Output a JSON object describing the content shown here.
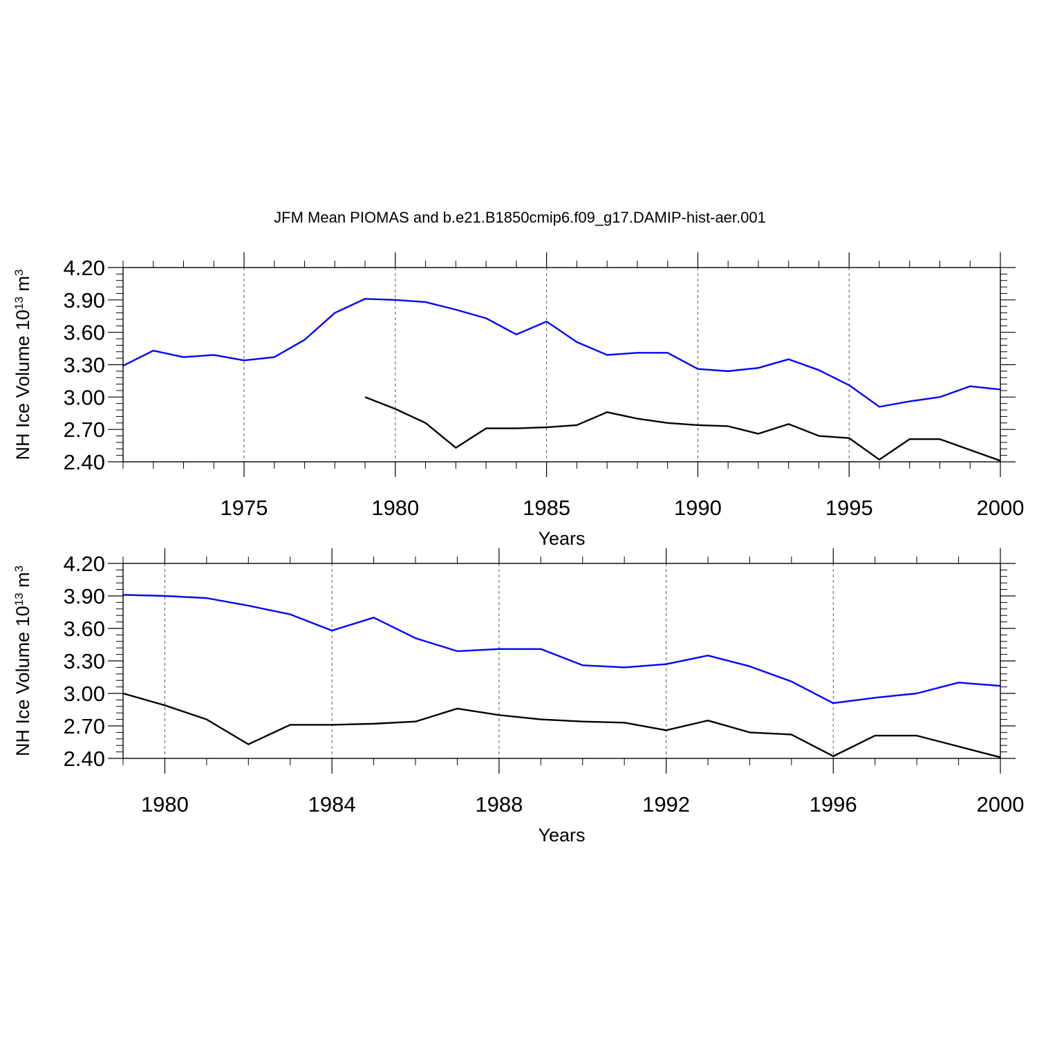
{
  "title": "JFM Mean PIOMAS and b.e21.B1850cmip6.f09_g17.DAMIP-hist-aer.001",
  "colors": {
    "piomas": "#0000ff",
    "model": "#000000",
    "axis": "#000000",
    "grid": "#555555"
  },
  "chart_data": [
    {
      "type": "line",
      "title": "",
      "xlabel": "Years",
      "ylabel": {
        "main": "NH Ice Volume 10",
        "sup1": "13",
        "unit": " m",
        "sup2": "3"
      },
      "xlim": [
        1971,
        2000
      ],
      "ylim": [
        2.4,
        4.2
      ],
      "xticks": [
        1975,
        1980,
        1985,
        1990,
        1995,
        2000
      ],
      "xtick_labels": [
        "1975",
        "1980",
        "1985",
        "1990",
        "1995",
        "2000"
      ],
      "xminor_step": 1,
      "yticks": [
        2.4,
        2.7,
        3.0,
        3.3,
        3.6,
        3.9,
        4.2
      ],
      "ytick_labels": [
        "2.40",
        "2.70",
        "3.00",
        "3.30",
        "3.60",
        "3.90",
        "4.20"
      ],
      "yminor_step": 0.06,
      "grid": "x dashed at major ticks",
      "series": [
        {
          "name": "PIOMAS",
          "color": "blue",
          "x": [
            1971,
            1972,
            1973,
            1974,
            1975,
            1976,
            1977,
            1978,
            1979,
            1980,
            1981,
            1982,
            1983,
            1984,
            1985,
            1986,
            1987,
            1988,
            1989,
            1990,
            1991,
            1992,
            1993,
            1994,
            1995,
            1996,
            1997,
            1998,
            1999,
            2000
          ],
          "values": [
            3.29,
            3.43,
            3.37,
            3.39,
            3.34,
            3.37,
            3.53,
            3.78,
            3.91,
            3.9,
            3.88,
            3.81,
            3.73,
            3.58,
            3.7,
            3.51,
            3.39,
            3.41,
            3.41,
            3.26,
            3.24,
            3.27,
            3.35,
            3.25,
            3.11,
            2.91,
            2.96,
            3.0,
            3.1,
            3.07
          ]
        },
        {
          "name": "b.e21.B1850cmip6.f09_g17.DAMIP-hist-aer.001",
          "color": "black",
          "x": [
            1979,
            1980,
            1981,
            1982,
            1983,
            1984,
            1985,
            1986,
            1987,
            1988,
            1989,
            1990,
            1991,
            1992,
            1993,
            1994,
            1995,
            1996,
            1997,
            1998,
            1999,
            2000
          ],
          "values": [
            3.0,
            2.89,
            2.76,
            2.53,
            2.71,
            2.71,
            2.72,
            2.74,
            2.86,
            2.8,
            2.76,
            2.74,
            2.73,
            2.66,
            2.75,
            2.64,
            2.62,
            2.42,
            2.61,
            2.61,
            2.51,
            2.41
          ]
        }
      ]
    },
    {
      "type": "line",
      "title": "",
      "xlabel": "Years",
      "ylabel": {
        "main": "NH Ice Volume 10",
        "sup1": "13",
        "unit": " m",
        "sup2": "3"
      },
      "xlim": [
        1979,
        2000
      ],
      "ylim": [
        2.4,
        4.2
      ],
      "xticks": [
        1980,
        1984,
        1988,
        1992,
        1996,
        2000
      ],
      "xtick_labels": [
        "1980",
        "1984",
        "1988",
        "1992",
        "1996",
        "2000"
      ],
      "xminor_step": 1,
      "yticks": [
        2.4,
        2.7,
        3.0,
        3.3,
        3.6,
        3.9,
        4.2
      ],
      "ytick_labels": [
        "2.40",
        "2.70",
        "3.00",
        "3.30",
        "3.60",
        "3.90",
        "4.20"
      ],
      "yminor_step": 0.06,
      "grid": "x dashed at major ticks",
      "series": [
        {
          "name": "PIOMAS",
          "color": "blue",
          "x": [
            1979,
            1980,
            1981,
            1982,
            1983,
            1984,
            1985,
            1986,
            1987,
            1988,
            1989,
            1990,
            1991,
            1992,
            1993,
            1994,
            1995,
            1996,
            1997,
            1998,
            1999,
            2000
          ],
          "values": [
            3.91,
            3.9,
            3.88,
            3.81,
            3.73,
            3.58,
            3.7,
            3.51,
            3.39,
            3.41,
            3.41,
            3.26,
            3.24,
            3.27,
            3.35,
            3.25,
            3.11,
            2.91,
            2.96,
            3.0,
            3.1,
            3.07
          ]
        },
        {
          "name": "b.e21.B1850cmip6.f09_g17.DAMIP-hist-aer.001",
          "color": "black",
          "x": [
            1979,
            1980,
            1981,
            1982,
            1983,
            1984,
            1985,
            1986,
            1987,
            1988,
            1989,
            1990,
            1991,
            1992,
            1993,
            1994,
            1995,
            1996,
            1997,
            1998,
            1999,
            2000
          ],
          "values": [
            3.0,
            2.89,
            2.76,
            2.53,
            2.71,
            2.71,
            2.72,
            2.74,
            2.86,
            2.8,
            2.76,
            2.74,
            2.73,
            2.66,
            2.75,
            2.64,
            2.62,
            2.42,
            2.61,
            2.61,
            2.51,
            2.41
          ]
        }
      ]
    }
  ]
}
